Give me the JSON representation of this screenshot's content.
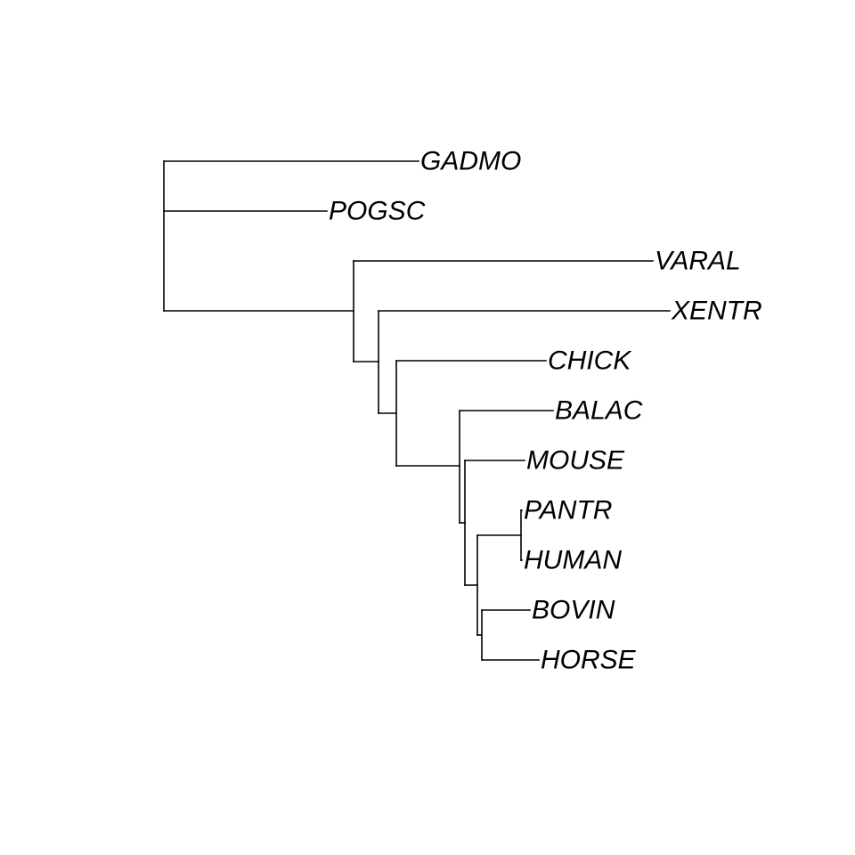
{
  "tree": {
    "type": "phylogram",
    "line_color": "#000000",
    "newick": "(GADMO,POGSC,(VARAL,(XENTR,(CHICK,((BALAC,(MOUSE,((PANTR,HUMAN),(BOVIN,HORSE))))))));",
    "tips": [
      {
        "id": "gadmo",
        "label": "GADMO"
      },
      {
        "id": "pogsc",
        "label": "POGSC"
      },
      {
        "id": "varal",
        "label": "VARAL"
      },
      {
        "id": "xentr",
        "label": "XENTR"
      },
      {
        "id": "chick",
        "label": "CHICK"
      },
      {
        "id": "balac",
        "label": "BALAC"
      },
      {
        "id": "mouse",
        "label": "MOUSE"
      },
      {
        "id": "pantr",
        "label": "PANTR"
      },
      {
        "id": "human",
        "label": "HUMAN"
      },
      {
        "id": "bovin",
        "label": "BOVIN"
      },
      {
        "id": "horse",
        "label": "HORSE"
      }
    ]
  }
}
